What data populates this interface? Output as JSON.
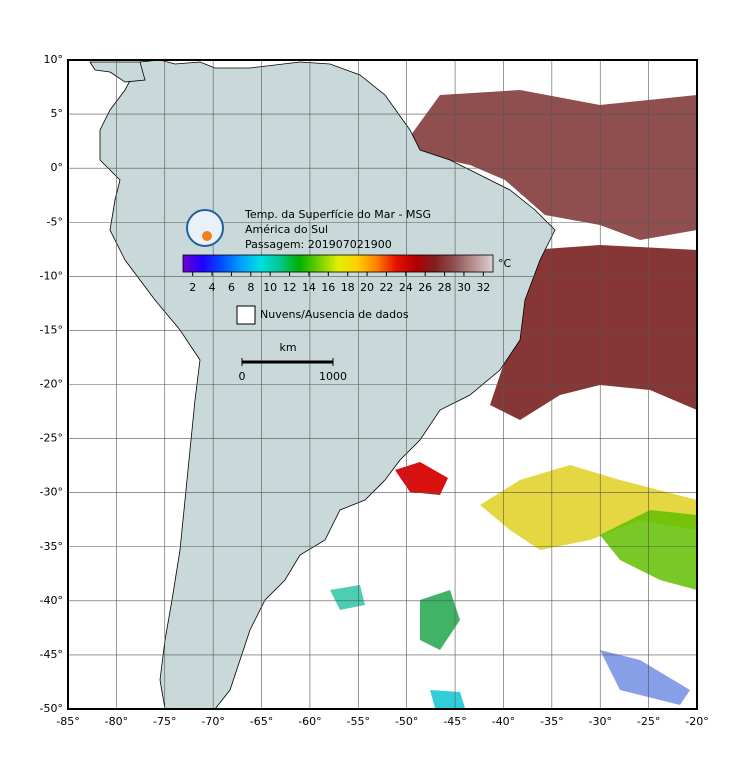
{
  "map": {
    "title": "Temp. da Superfície do Mar - MSG",
    "region": "América do Sul",
    "pass": "Passagem: 201907021900",
    "xlim": [
      -85,
      -20
    ],
    "ylim": [
      -50,
      10
    ],
    "xticks": [
      {
        "value": -85,
        "label": "-85°"
      },
      {
        "value": -80,
        "label": "-80°"
      },
      {
        "value": -75,
        "label": "-75°"
      },
      {
        "value": -70,
        "label": "-70°"
      },
      {
        "value": -65,
        "label": "-65°"
      },
      {
        "value": -60,
        "label": "-60°"
      },
      {
        "value": -55,
        "label": "-55°"
      },
      {
        "value": -50,
        "label": "-50°"
      },
      {
        "value": -45,
        "label": "-45°"
      },
      {
        "value": -40,
        "label": "-40°"
      },
      {
        "value": -35,
        "label": "-35°"
      },
      {
        "value": -30,
        "label": "-30°"
      },
      {
        "value": -25,
        "label": "-25°"
      },
      {
        "value": -20,
        "label": "-20°"
      }
    ],
    "yticks": [
      {
        "value": 10,
        "label": "10°"
      },
      {
        "value": 5,
        "label": "5°"
      },
      {
        "value": 0,
        "label": "0°"
      },
      {
        "value": -5,
        "label": "-5°"
      },
      {
        "value": -10,
        "label": "-10°"
      },
      {
        "value": -15,
        "label": "-15°"
      },
      {
        "value": -20,
        "label": "-20°"
      },
      {
        "value": -25,
        "label": "-25°"
      },
      {
        "value": -30,
        "label": "-30°"
      },
      {
        "value": -35,
        "label": "-35°"
      },
      {
        "value": -40,
        "label": "-40°"
      },
      {
        "value": -45,
        "label": "-45°"
      },
      {
        "value": -50,
        "label": "-50°"
      }
    ],
    "grid": true,
    "colorbar": {
      "unit": "°C",
      "clim": [
        1,
        33
      ],
      "ticks": [
        2,
        4,
        6,
        8,
        10,
        12,
        14,
        16,
        18,
        20,
        22,
        24,
        26,
        28,
        30,
        32
      ],
      "colors": [
        "#7000d0",
        "#2000ff",
        "#0050ff",
        "#00a0ff",
        "#00e0e0",
        "#00c890",
        "#00b000",
        "#70d000",
        "#e0f000",
        "#ffd000",
        "#ff8000",
        "#e81000",
        "#b00000",
        "#802020",
        "#905050",
        "#b89090",
        "#e0d0d0"
      ]
    },
    "legend": "Nuvens/Ausencia de dados",
    "scale_bar": {
      "unit": "km",
      "ticks": [
        0,
        1000
      ]
    }
  }
}
